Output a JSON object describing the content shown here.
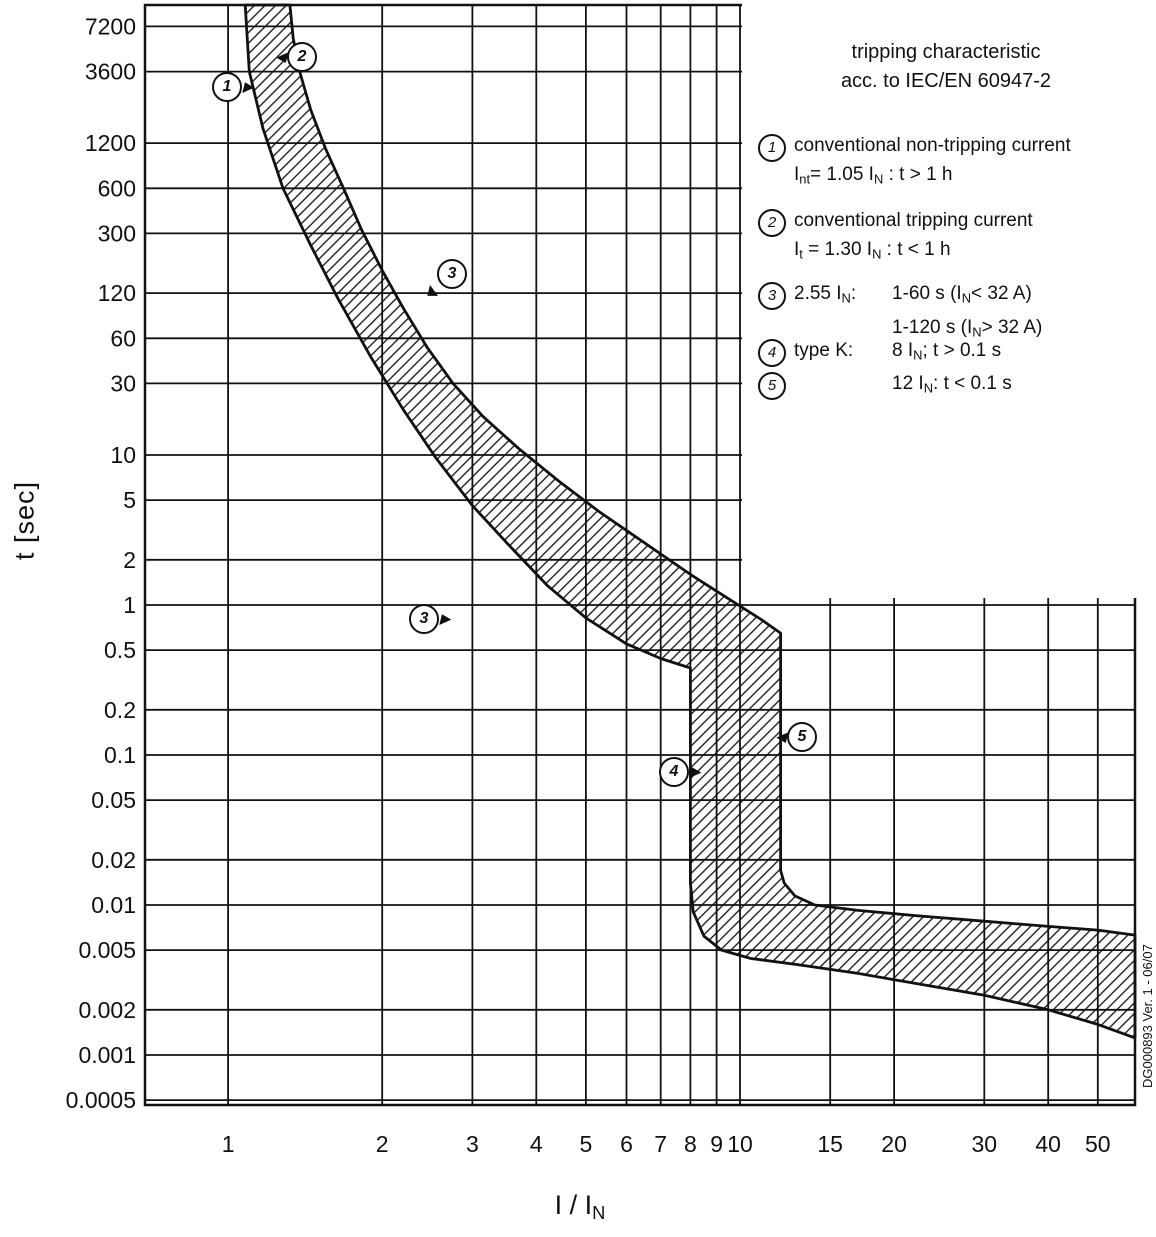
{
  "chart_data": {
    "type": "area",
    "title_lines": [
      "tripping characteristic",
      "acc. to IEC/EN 60947-2"
    ],
    "x_axis": {
      "label": "I / I_{N}",
      "scale": "log",
      "min": 0.688,
      "max": 59.1,
      "ticks": [
        1,
        2,
        3,
        4,
        5,
        6,
        7,
        8,
        9,
        10,
        15,
        20,
        30,
        40,
        50
      ],
      "tick_labels": [
        "1",
        "2",
        "3",
        "4",
        "5",
        "6",
        "7",
        "8",
        "9",
        "10",
        "15",
        "20",
        "30",
        "40",
        "50"
      ]
    },
    "y_axis": {
      "label": "t [sec]",
      "scale": "log",
      "min": 0.000464,
      "max": 10000,
      "ticks": [
        7200,
        3600,
        1200,
        600,
        300,
        120,
        60,
        30,
        10,
        5,
        2,
        1,
        0.5,
        0.2,
        0.1,
        0.05,
        0.02,
        0.01,
        0.005,
        0.002,
        0.001,
        0.0005
      ],
      "tick_labels": [
        "7200",
        "3600",
        "1200",
        "600",
        "300",
        "120",
        "60",
        "30",
        "10",
        "5",
        "2",
        "1",
        "0.5",
        "0.2",
        "0.1",
        "0.05",
        "0.02",
        "0.01",
        "0.005",
        "0.002",
        "0.001",
        "0.0005"
      ]
    },
    "band": {
      "description": "tripping characteristic tolerance band (hatched region between min and max tripping curves)",
      "upper_curve": [
        [
          1.32,
          10000
        ],
        [
          1.34,
          6000
        ],
        [
          1.38,
          3600
        ],
        [
          1.45,
          2000
        ],
        [
          1.55,
          1100
        ],
        [
          1.68,
          600
        ],
        [
          1.82,
          320
        ],
        [
          2.0,
          170
        ],
        [
          2.2,
          95
        ],
        [
          2.45,
          52
        ],
        [
          2.75,
          30
        ],
        [
          3.15,
          18
        ],
        [
          3.7,
          11
        ],
        [
          4.4,
          6.8
        ],
        [
          5.3,
          4.2
        ],
        [
          6.5,
          2.6
        ],
        [
          8.0,
          1.6
        ],
        [
          9.5,
          1.1
        ],
        [
          11.0,
          0.8
        ],
        [
          12.0,
          0.65
        ],
        [
          12.0,
          0.017
        ],
        [
          12.2,
          0.014
        ],
        [
          12.8,
          0.0115
        ],
        [
          14.0,
          0.01
        ],
        [
          17,
          0.0092
        ],
        [
          22,
          0.0085
        ],
        [
          30,
          0.0078
        ],
        [
          40,
          0.0072
        ],
        [
          50,
          0.0068
        ],
        [
          59.1,
          0.0063
        ]
      ],
      "lower_curve": [
        [
          1.08,
          10000
        ],
        [
          1.1,
          3600
        ],
        [
          1.17,
          1500
        ],
        [
          1.28,
          600
        ],
        [
          1.45,
          250
        ],
        [
          1.64,
          110
        ],
        [
          1.9,
          45
        ],
        [
          2.2,
          20
        ],
        [
          2.55,
          9.5
        ],
        [
          3.0,
          4.6
        ],
        [
          3.5,
          2.6
        ],
        [
          4.2,
          1.35
        ],
        [
          5.0,
          0.82
        ],
        [
          6.0,
          0.55
        ],
        [
          7.0,
          0.44
        ],
        [
          8.0,
          0.38
        ],
        [
          8.0,
          0.014
        ],
        [
          8.1,
          0.009
        ],
        [
          8.5,
          0.0062
        ],
        [
          9.2,
          0.005
        ],
        [
          10.5,
          0.0044
        ],
        [
          13,
          0.004
        ],
        [
          17,
          0.0035
        ],
        [
          22,
          0.003
        ],
        [
          30,
          0.0025
        ],
        [
          40,
          0.002
        ],
        [
          50,
          0.0016
        ],
        [
          59.1,
          0.0013
        ]
      ]
    },
    "annotations": [
      {
        "label": "1",
        "x": 0.987,
        "t": 2930,
        "pointer": "e"
      },
      {
        "label": "2",
        "x": 1.383,
        "t": 4640,
        "pointer": "w"
      },
      {
        "label": "3",
        "x": 2.71,
        "t": 166,
        "pointer": "sw"
      },
      {
        "label": "3",
        "x": 2.39,
        "t": 0.83,
        "pointer": "e"
      },
      {
        "label": "4",
        "x": 7.37,
        "t": 0.079,
        "pointer": "e"
      },
      {
        "label": "5",
        "x": 13.1,
        "t": 0.136,
        "pointer": "w"
      }
    ],
    "legend": {
      "items": [
        {
          "num": "1",
          "head": "",
          "line1": "conventional non-tripping current",
          "line2": "I_{nt}= 1.05 I_{N} : t > 1 h"
        },
        {
          "num": "2",
          "head": "",
          "line1": "conventional tripping current",
          "line2": "I_{t} = 1.30 I_{N} : t < 1 h"
        },
        {
          "num": "3",
          "head": "2.55 I_{N}:",
          "line1": "1-60 s (I_{N}< 32 A)",
          "line2": "1-120 s (I_{N}> 32 A)"
        },
        {
          "num": "4",
          "head": "type K:",
          "line1": "8 I_{N}; t > 0.1 s",
          "line2": ""
        },
        {
          "num": "5",
          "head": "",
          "line1": "12 I_{N}: t < 0.1 s",
          "line2": ""
        }
      ]
    },
    "watermark": "DG000893 Ver. 1 - 06/07",
    "colors": {
      "ink": "#111111",
      "background": "#ffffff"
    }
  }
}
